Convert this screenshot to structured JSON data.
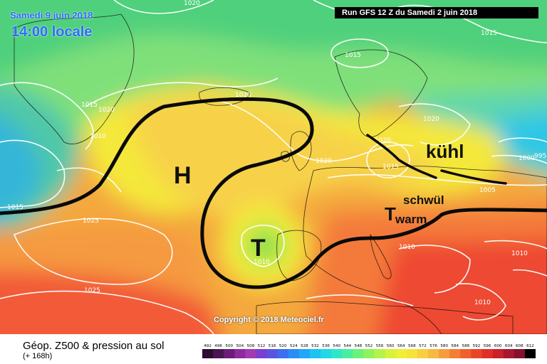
{
  "header": {
    "date": "Samedi 9 juin 2018",
    "time": "14:00 locale",
    "run": "Run GFS 12 Z du Samedi 2 juin 2018"
  },
  "copyright": "Copyright © 2018 Meteociel.fr",
  "footer": {
    "title": "Géop. Z500 & pression au sol",
    "subtitle": "(+ 168h)"
  },
  "annotations": {
    "high": "H",
    "low": "T",
    "low2": "T",
    "cool": "kühl",
    "humid": "schwül",
    "warm": "warm"
  },
  "isobar_labels": [
    {
      "value": "1020",
      "where": "top-center"
    },
    {
      "value": "1015",
      "where": "top-right"
    },
    {
      "value": "1015",
      "where": "north-atlantic"
    },
    {
      "value": "1020",
      "where": "iceland"
    },
    {
      "value": "1015",
      "where": "greenland-south"
    },
    {
      "value": "1020",
      "where": "greenland-south"
    },
    {
      "value": "1010",
      "where": "greenland-west"
    },
    {
      "value": "1020",
      "where": "scandinavia"
    },
    {
      "value": "1020",
      "where": "north-sea"
    },
    {
      "value": "1020",
      "where": "baltic"
    },
    {
      "value": "1015",
      "where": "baltic"
    },
    {
      "value": "1000",
      "where": "russia"
    },
    {
      "value": "995",
      "where": "russia"
    },
    {
      "value": "1005",
      "where": "poland"
    },
    {
      "value": "1015",
      "where": "west"
    },
    {
      "value": "1025",
      "where": "mid-atlantic"
    },
    {
      "value": "1010",
      "where": "iberia"
    },
    {
      "value": "1010",
      "where": "balkans"
    },
    {
      "value": "1010",
      "where": "greece"
    },
    {
      "value": "1010",
      "where": "mediterranean-east"
    },
    {
      "value": "1025",
      "where": "south-atlantic"
    }
  ],
  "legend": {
    "values": [
      492,
      496,
      500,
      504,
      508,
      512,
      516,
      520,
      524,
      528,
      532,
      536,
      540,
      544,
      548,
      552,
      556,
      560,
      564,
      568,
      572,
      576,
      580,
      584,
      588,
      592,
      596,
      600,
      604,
      608,
      612
    ],
    "colors": [
      "#2b0f2e",
      "#4a1552",
      "#6b1d78",
      "#8e2a9e",
      "#a33ab5",
      "#7a3fd0",
      "#5a55e0",
      "#3b6ef0",
      "#2a8cf5",
      "#21a7f5",
      "#1cc3f0",
      "#20d8e6",
      "#2fe6c8",
      "#48ee9e",
      "#6cf27a",
      "#8ff35c",
      "#b5f248",
      "#d7f23c",
      "#f0ef38",
      "#f7e23a",
      "#f8cf3e",
      "#f8b842",
      "#f79c3e",
      "#f47e36",
      "#f0602e",
      "#ea4428",
      "#e02f24",
      "#c9222a",
      "#a8182c",
      "#86112e",
      "#000000"
    ]
  },
  "colors": {
    "front": "#0a0a0a",
    "isobar": "#ffffff",
    "date_text": "#2f6bff"
  }
}
